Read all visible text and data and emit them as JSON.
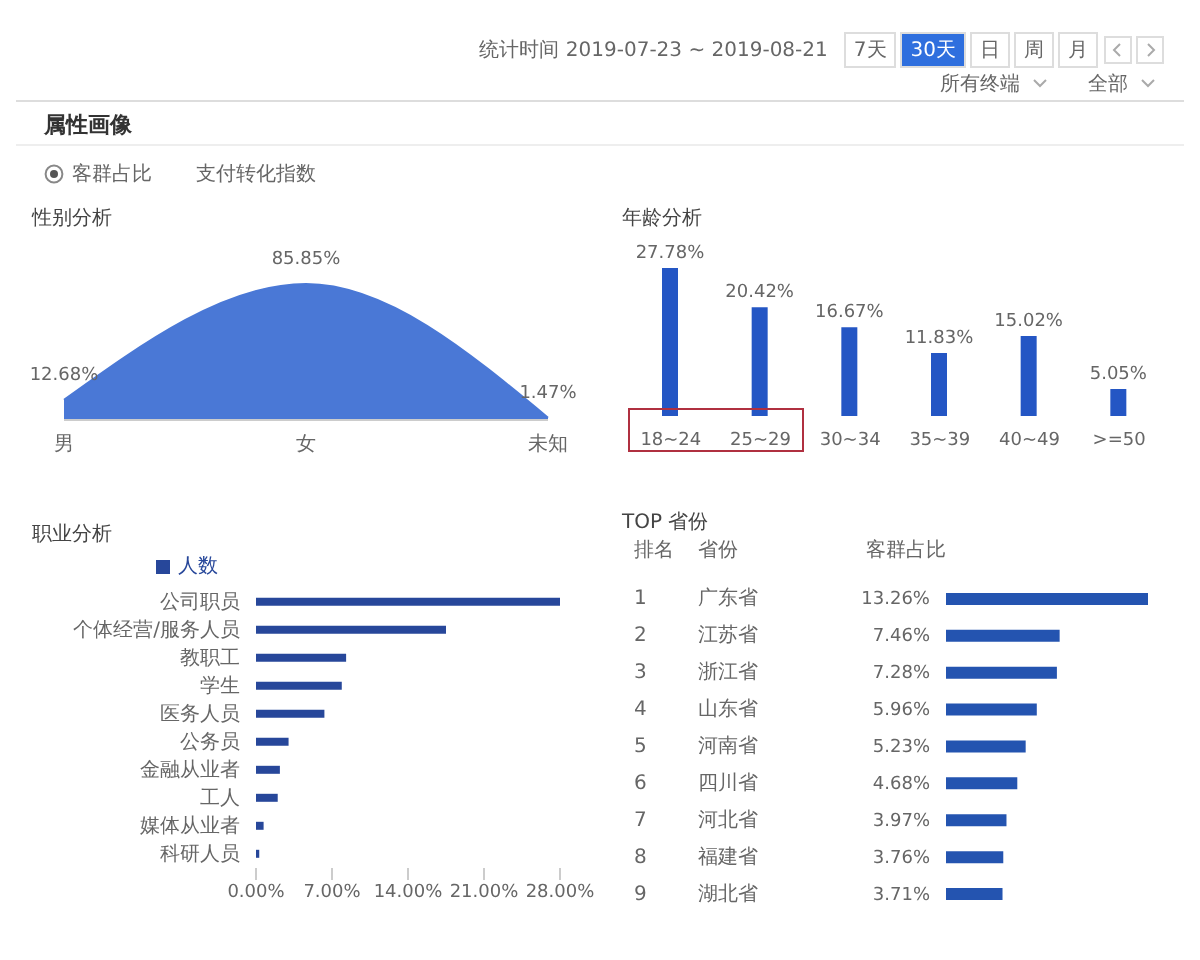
{
  "chart_data": [
    {
      "type": "other",
      "title": "属性画像",
      "annotations": [
        "统计时间 2019-07-23 ~ 2019-08-21",
        "7天",
        "30天",
        "日",
        "周",
        "月",
        "所有终端",
        "全部",
        "客群占比",
        "支付转化指数"
      ]
    },
    {
      "type": "area",
      "title": "性别分析",
      "categories": [
        "男",
        "女",
        "未知"
      ],
      "values": [
        12.68,
        85.85,
        1.47
      ],
      "value_labels": [
        "12.68%",
        "85.85%",
        "1.47%"
      ],
      "color": "#4a78d6"
    },
    {
      "type": "bar",
      "title": "年龄分析",
      "categories": [
        "18~24",
        "25~29",
        "30~34",
        "35~39",
        "40~49",
        ">=50"
      ],
      "values": [
        27.78,
        20.42,
        16.67,
        11.83,
        15.02,
        5.05
      ],
      "value_labels": [
        "27.78%",
        "20.42%",
        "16.67%",
        "11.83%",
        "15.02%",
        "5.05%"
      ],
      "color": "#2456c4"
    },
    {
      "type": "bar",
      "orientation": "horizontal",
      "title": "职业分析",
      "categories": [
        "公司职员",
        "个体经营/服务人员",
        "教职工",
        "学生",
        "医务人员",
        "公务员",
        "金融从业者",
        "工人",
        "媒体从业者",
        "科研人员"
      ],
      "series": [
        {
          "name": "人数",
          "color": "#27479a",
          "values": [
            28.0,
            17.5,
            8.3,
            7.9,
            6.3,
            3.0,
            2.2,
            2.0,
            0.7,
            0.3
          ]
        }
      ],
      "xlim": [
        0,
        28
      ],
      "xticks": [
        {
          "value": 0,
          "label": "0.00%"
        },
        {
          "value": 7,
          "label": "7.00%"
        },
        {
          "value": 14,
          "label": "14.00%"
        },
        {
          "value": 21,
          "label": "21.00%"
        },
        {
          "value": 28,
          "label": "28.00%"
        }
      ],
      "legend": "top left"
    },
    {
      "type": "bar",
      "orientation": "horizontal",
      "title": "TOP 省份",
      "categories": [
        "广东省",
        "江苏省",
        "浙江省",
        "山东省",
        "河南省",
        "四川省",
        "河北省",
        "福建省",
        "湖北省"
      ],
      "values": [
        13.26,
        7.46,
        7.28,
        5.96,
        5.23,
        4.68,
        3.97,
        3.76,
        3.71
      ],
      "value_labels": [
        "13.26%",
        "7.46%",
        "7.28%",
        "5.96%",
        "5.23%",
        "4.68%",
        "3.97%",
        "3.76%",
        "3.71%"
      ],
      "color": "#2454b0",
      "annotations": [
        "排名",
        "省份",
        "客群占比",
        "1",
        "2",
        "3",
        "4",
        "5",
        "6",
        "7",
        "8",
        "9"
      ]
    }
  ]
}
